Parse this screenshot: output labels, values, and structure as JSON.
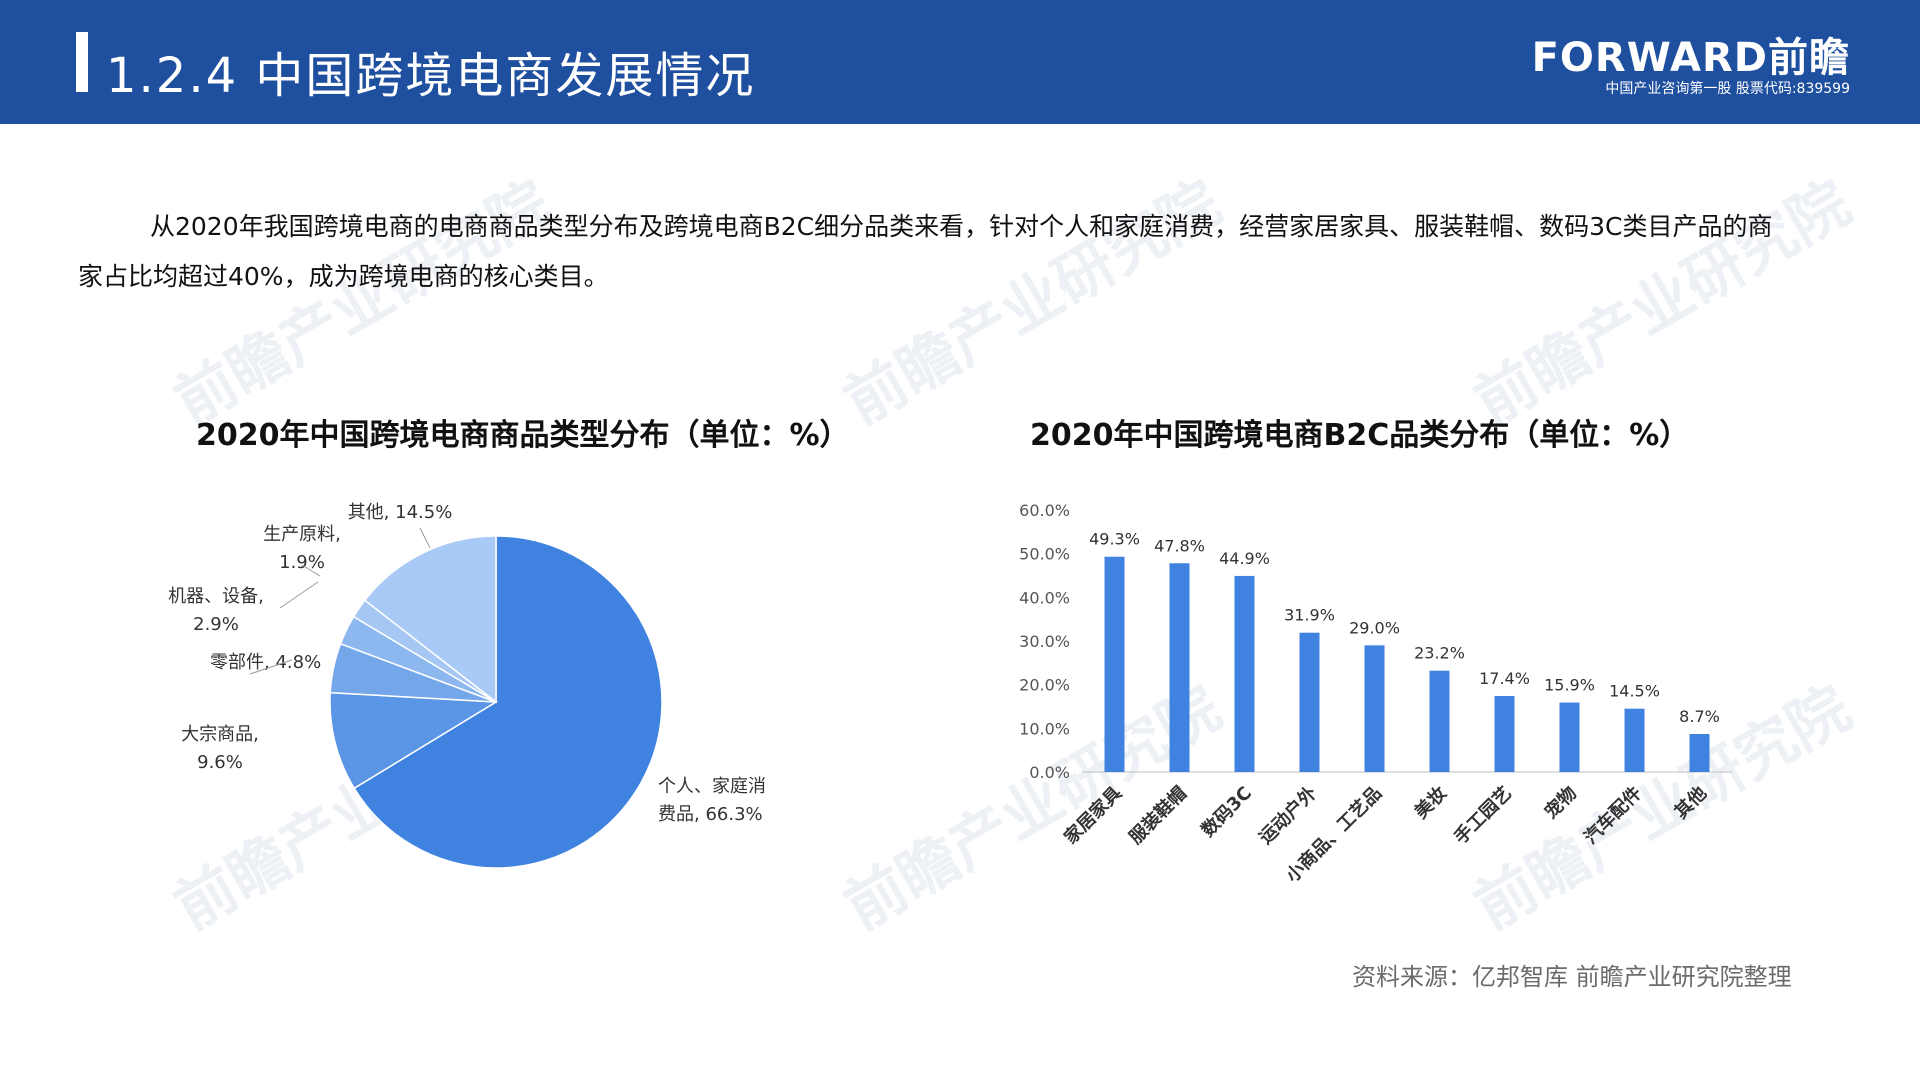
{
  "header": {
    "title": "1.2.4 中国跨境电商发展情况",
    "brand": "FORWARD前瞻",
    "tagline": "中国产业咨询第一股 股票代码:839599"
  },
  "watermark": {
    "text": "前瞻产业研究院"
  },
  "intro": {
    "text": "从2020年我国跨境电商的电商商品类型分布及跨境电商B2C细分品类来看，针对个人和家庭消费，经营家居家具、服装鞋帽、数码3C类目产品的商家占比均超过40%，成为跨境电商的核心类目。"
  },
  "colors": {
    "header_bg": "#1f4f9f",
    "bar": "#3f82e0",
    "pie": [
      "#3f82e0",
      "#5b95e5",
      "#74a6ea",
      "#8db7ef",
      "#a6c7f3",
      "#a9c9f6"
    ]
  },
  "source": "资料来源：亿邦智库 前瞻产业研究院整理",
  "chart_data": [
    {
      "type": "pie",
      "title": "2020年中国跨境电商商品类型分布（单位：%）",
      "slices": [
        {
          "label": "个人、家庭消费品",
          "display": "个人、家庭消费品, 66.3%",
          "value": 66.3
        },
        {
          "label": "大宗商品",
          "display": "大宗商品, 9.6%",
          "value": 9.6
        },
        {
          "label": "零部件",
          "display": "零部件, 4.8%",
          "value": 4.8
        },
        {
          "label": "机器、设备",
          "display": "机器、设备, 2.9%",
          "value": 2.9
        },
        {
          "label": "生产原料",
          "display": "生产原料, 1.9%",
          "value": 1.9
        },
        {
          "label": "其他",
          "display": "其他, 14.5%",
          "value": 14.5
        }
      ]
    },
    {
      "type": "bar",
      "title": "2020年中国跨境电商B2C品类分布（单位：%）",
      "categories": [
        "家居家具",
        "服装鞋帽",
        "数码3C",
        "运动户外",
        "小商品、工艺品",
        "美妆",
        "手工园艺",
        "宠物",
        "汽车配件",
        "其他"
      ],
      "values": [
        49.3,
        47.8,
        44.9,
        31.9,
        29.0,
        23.2,
        17.4,
        15.9,
        14.5,
        8.7
      ],
      "value_labels": [
        "49.3%",
        "47.8%",
        "44.9%",
        "31.9%",
        "29.0%",
        "23.2%",
        "17.4%",
        "15.9%",
        "14.5%",
        "8.7%"
      ],
      "yticks": [
        "0.0%",
        "10.0%",
        "20.0%",
        "30.0%",
        "40.0%",
        "50.0%",
        "60.0%"
      ],
      "ylim": [
        0,
        60
      ],
      "grid": false
    }
  ]
}
